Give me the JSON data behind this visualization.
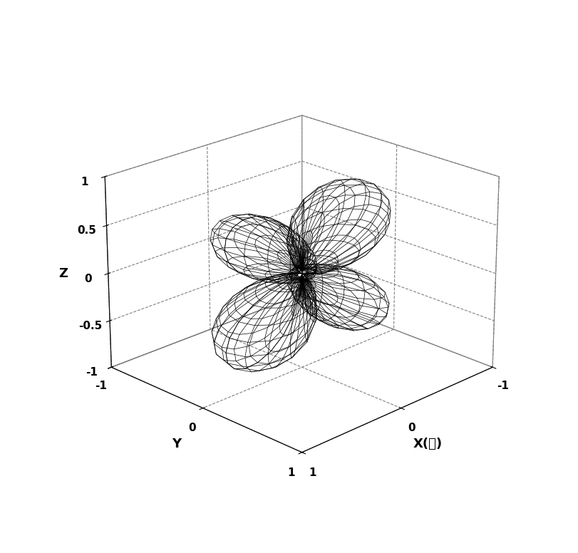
{
  "title": "",
  "xlabel": "X(北)",
  "ylabel": "Y",
  "zlabel": "Z",
  "xlim": [
    -1,
    1
  ],
  "ylim": [
    -1,
    1
  ],
  "zlim": [
    -1,
    1
  ],
  "xticks": [
    -1,
    0,
    1
  ],
  "yticks": [
    -1,
    0,
    1
  ],
  "zticks": [
    -1,
    -0.5,
    0,
    0.5,
    1
  ],
  "wire_color": "#000000",
  "background_color": "#ffffff",
  "n_theta": 30,
  "n_phi": 30,
  "elev": 22,
  "azim": 45
}
